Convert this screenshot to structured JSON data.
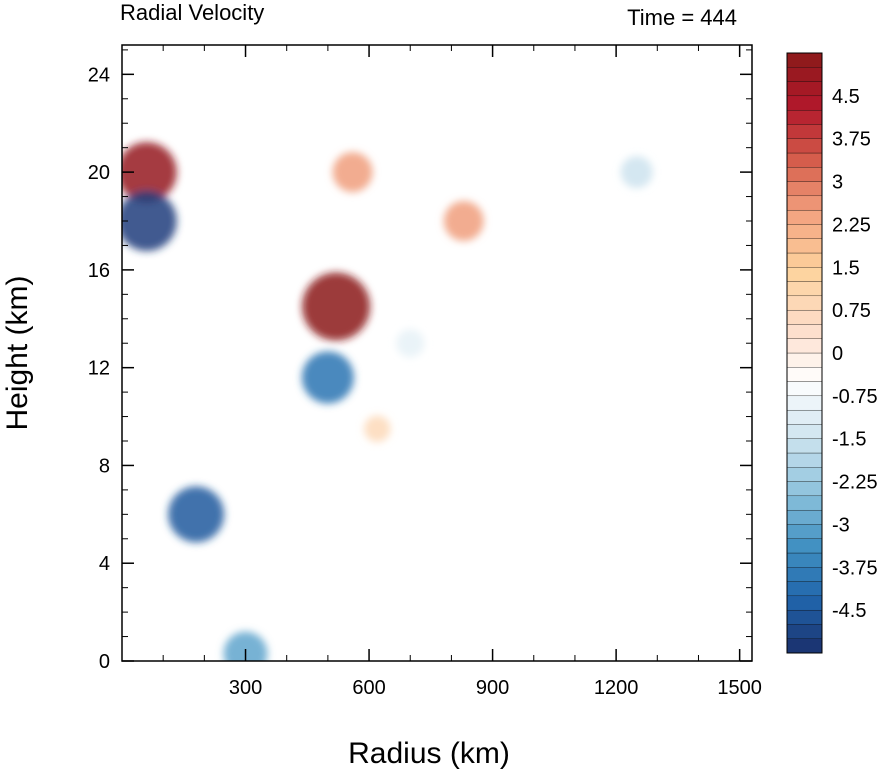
{
  "chart_data": {
    "type": "heatmap",
    "title": "Radial Velocity",
    "right_title": "Time = 444",
    "xlabel": "Radius (km)",
    "ylabel": "Height (km)",
    "xlim": [
      0,
      1530
    ],
    "ylim": [
      0,
      25.2
    ],
    "xticks": [
      300,
      600,
      900,
      1200,
      1500
    ],
    "yticks": [
      0,
      4,
      8,
      12,
      16,
      20,
      24
    ],
    "colorbar": {
      "levels_min": -5.25,
      "levels_max": 5.25,
      "step": 0.25,
      "labels": [
        "4.5",
        "3.75",
        "3",
        "2.25",
        "1.5",
        "0.75",
        "0",
        "-0.75",
        "-1.5",
        "-2.25",
        "-3",
        "-3.75",
        "-4.5"
      ],
      "colors": [
        "#1a2f6b",
        "#2166ac",
        "#4393c3",
        "#92c5de",
        "#d1e5f0",
        "#ffffff",
        "#fddbc7",
        "#fdd49e",
        "#f4a582",
        "#d6604d",
        "#b2182b",
        "#8b1a1a"
      ]
    },
    "features": [
      {
        "x": 520,
        "y": 14.5,
        "value": 6.0
      },
      {
        "x": 180,
        "y": 6.0,
        "value": -4.5
      },
      {
        "x": 500,
        "y": 11.6,
        "value": -4.0
      },
      {
        "x": 60,
        "y": 20.0,
        "value": 5.0
      },
      {
        "x": 60,
        "y": 18.0,
        "value": -5.0
      },
      {
        "x": 560,
        "y": 20.0,
        "value": 2.5
      },
      {
        "x": 830,
        "y": 18.0,
        "value": 2.5
      },
      {
        "x": 1250,
        "y": 20.0,
        "value": -1.5
      },
      {
        "x": 620,
        "y": 9.5,
        "value": 0.8
      },
      {
        "x": 300,
        "y": 0.3,
        "value": -3.0
      },
      {
        "x": 700,
        "y": 13.0,
        "value": -1.0
      }
    ]
  }
}
